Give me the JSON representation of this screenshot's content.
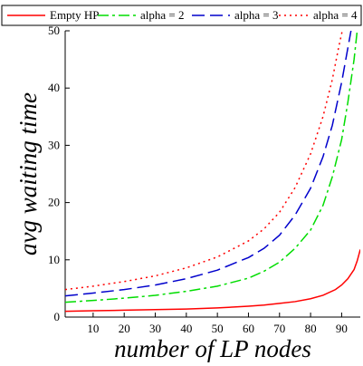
{
  "chart_data": {
    "type": "line",
    "title": "",
    "xlabel": "number of LP nodes",
    "ylabel": "avg waiting time",
    "xlim": [
      1,
      96
    ],
    "ylim": [
      0,
      50
    ],
    "x_ticks": [
      10,
      20,
      30,
      40,
      50,
      60,
      70,
      80,
      90
    ],
    "y_ticks": [
      0,
      10,
      20,
      30,
      40,
      50
    ],
    "grid": false,
    "legend_position": "top",
    "series": [
      {
        "name": "Empty HP",
        "color": "#ff0000",
        "dash": "solid",
        "x": [
          1,
          10,
          20,
          30,
          40,
          50,
          60,
          65,
          70,
          75,
          80,
          84,
          88,
          90,
          92,
          94,
          95,
          96
        ],
        "y": [
          1.0,
          1.1,
          1.2,
          1.3,
          1.4,
          1.6,
          1.9,
          2.1,
          2.4,
          2.7,
          3.2,
          3.8,
          4.8,
          5.6,
          6.7,
          8.3,
          9.8,
          11.8
        ]
      },
      {
        "name": "alpha = 2",
        "color": "#00dd00",
        "dash": "dashdot",
        "x": [
          1,
          10,
          20,
          30,
          40,
          50,
          60,
          65,
          70,
          75,
          80,
          84,
          87,
          90,
          92,
          94,
          95,
          96
        ],
        "y": [
          2.6,
          2.9,
          3.3,
          3.8,
          4.5,
          5.4,
          6.8,
          8.0,
          9.6,
          12.0,
          15.2,
          19.5,
          24.5,
          31.0,
          37.5,
          45.0,
          50.0,
          54.0
        ]
      },
      {
        "name": "alpha = 3",
        "color": "#0000cc",
        "dash": "dashed",
        "x": [
          1,
          10,
          20,
          30,
          40,
          50,
          60,
          65,
          70,
          75,
          80,
          84,
          87,
          90,
          92,
          94,
          95
        ],
        "y": [
          3.7,
          4.2,
          4.8,
          5.6,
          6.7,
          8.2,
          10.4,
          12.0,
          14.3,
          17.8,
          22.5,
          28.0,
          33.5,
          41.0,
          47.0,
          53.0,
          57.0
        ]
      },
      {
        "name": "alpha = 4",
        "color": "#ff0000",
        "dash": "dotted",
        "x": [
          1,
          10,
          20,
          30,
          40,
          50,
          60,
          65,
          70,
          75,
          80,
          84,
          87,
          89,
          91,
          92
        ],
        "y": [
          4.8,
          5.4,
          6.2,
          7.2,
          8.6,
          10.5,
          13.3,
          15.4,
          18.3,
          22.6,
          28.5,
          35.0,
          41.5,
          47.0,
          52.0,
          55.0
        ]
      }
    ]
  }
}
